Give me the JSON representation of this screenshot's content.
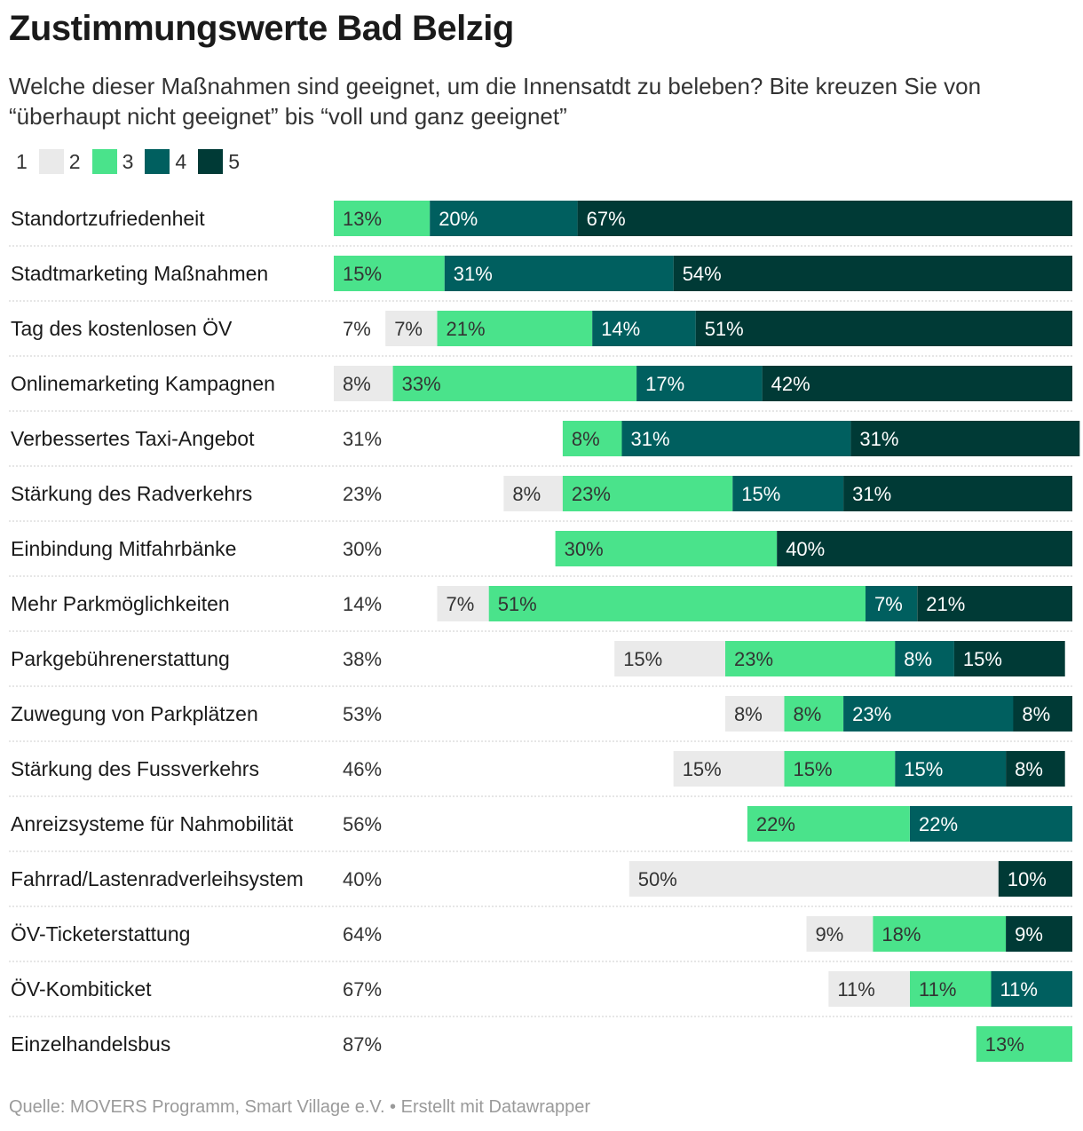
{
  "title": "Zustimmungswerte Bad Belzig",
  "subtitle": "Welche dieser Maßnahmen sind geeignet, um die Innensatdt zu beleben? Bite kreuzen Sie von “überhaupt nicht geeignet” bis “voll und ganz geeignet”",
  "source": "Quelle: MOVERS Programm, Smart Village e.V. • Erstellt mit Datawrapper",
  "colors": {
    "1": "#ffffff",
    "2": "#eaeaea",
    "3": "#4ae38b",
    "4": "#005f5f",
    "5": "#003a36"
  },
  "chart_data": {
    "type": "bar",
    "orientation": "horizontal",
    "stacked": true,
    "xlim": [
      0,
      100
    ],
    "legend_position": "top-left",
    "categories": [
      "Standortzufriedenheit",
      "Stadtmarketing Maßnahmen",
      "Tag des kostenlosen ÖV",
      "Onlinemarketing Kampagnen",
      "Verbessertes Taxi-Angebot",
      "Stärkung des Radverkehrs",
      "Einbindung Mitfahrbänke",
      "Mehr Parkmöglichkeiten",
      "Parkgebührenerstattung",
      "Zuwegung von Parkplätzen",
      "Stärkung des Fussverkehrs",
      "Anreizsysteme für Nahmobilität",
      "Fahrrad/Lastenradverleihsystem",
      "ÖV-Ticketerstattung",
      "ÖV-Kombiticket",
      "Einzelhandelsbus"
    ],
    "series": [
      {
        "name": "1",
        "values": [
          0,
          0,
          7,
          0,
          31,
          23,
          30,
          14,
          38,
          53,
          46,
          56,
          40,
          64,
          67,
          87
        ]
      },
      {
        "name": "2",
        "values": [
          0,
          0,
          7,
          8,
          0,
          8,
          0,
          7,
          15,
          8,
          15,
          0,
          50,
          9,
          11,
          0
        ]
      },
      {
        "name": "3",
        "values": [
          13,
          15,
          21,
          33,
          8,
          23,
          30,
          51,
          23,
          8,
          15,
          22,
          0,
          18,
          11,
          13
        ]
      },
      {
        "name": "4",
        "values": [
          20,
          31,
          14,
          17,
          31,
          15,
          0,
          7,
          8,
          23,
          15,
          22,
          0,
          0,
          11,
          0
        ]
      },
      {
        "name": "5",
        "values": [
          67,
          54,
          51,
          42,
          31,
          31,
          40,
          21,
          15,
          8,
          8,
          0,
          10,
          9,
          0,
          0
        ]
      }
    ]
  }
}
